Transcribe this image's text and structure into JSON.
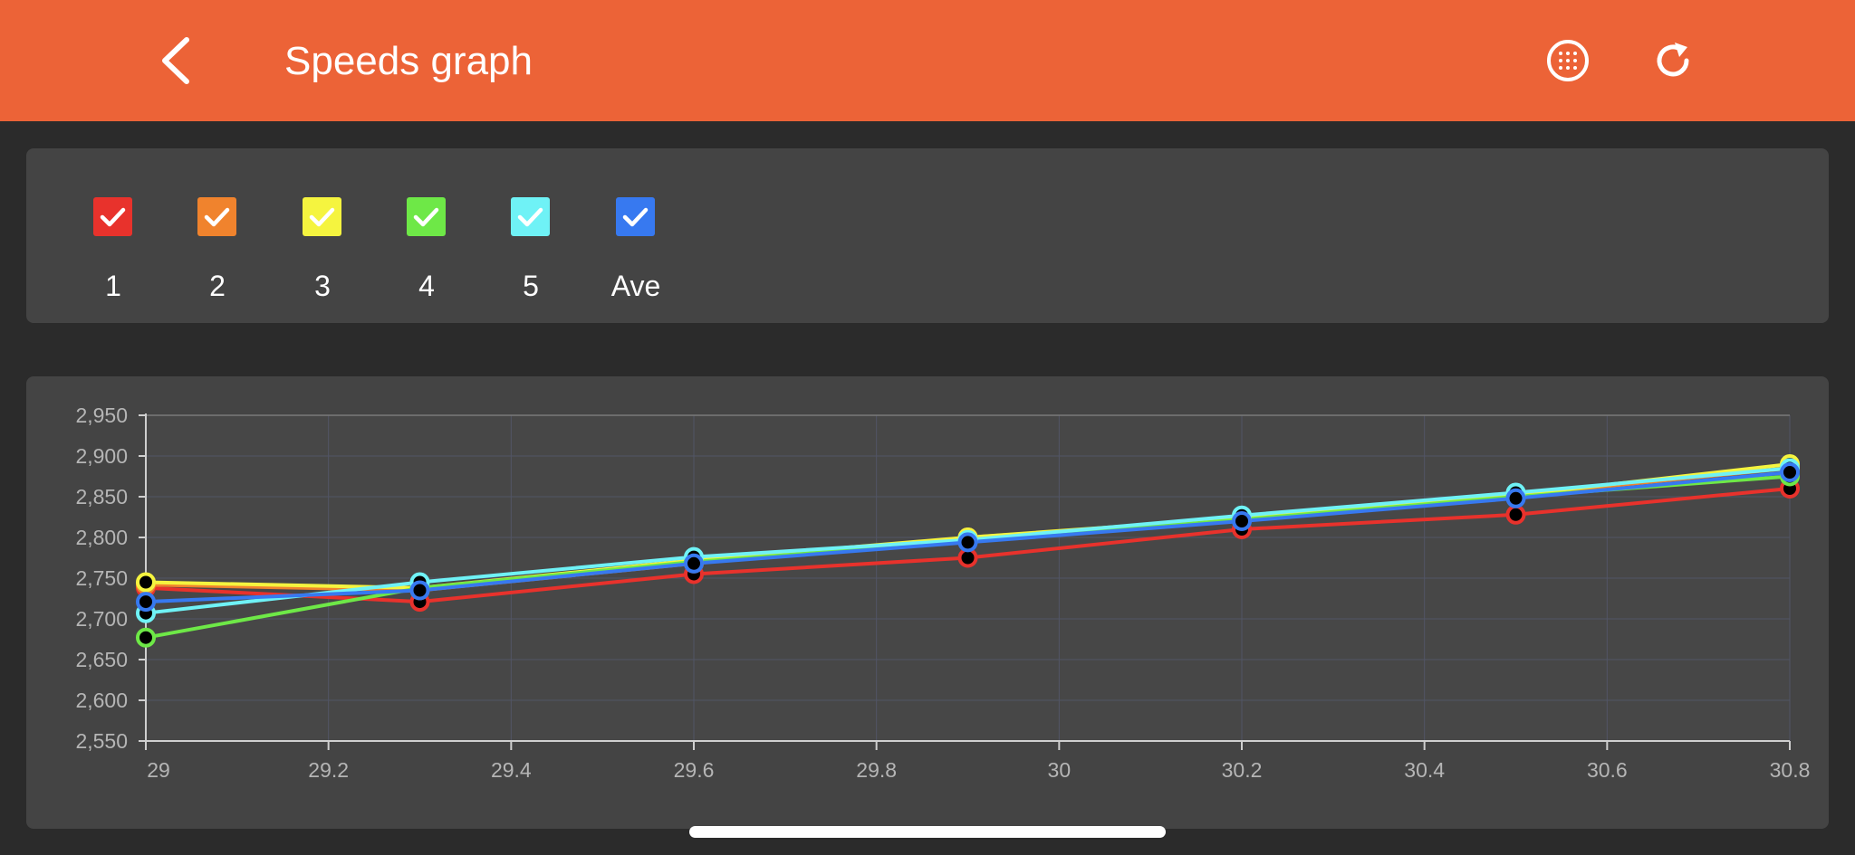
{
  "header": {
    "title": "Speeds graph",
    "back_icon": "chevron-left-icon",
    "grid_icon": "grid-dots-icon",
    "refresh_icon": "refresh-icon",
    "background": "#ec6337"
  },
  "legend": {
    "items": [
      {
        "label": "1",
        "color": "#e8322c",
        "checked": true
      },
      {
        "label": "2",
        "color": "#f0832d",
        "checked": true
      },
      {
        "label": "3",
        "color": "#f5f43f",
        "checked": true
      },
      {
        "label": "4",
        "color": "#6ee847",
        "checked": true
      },
      {
        "label": "5",
        "color": "#6ff2f6",
        "checked": true
      },
      {
        "label": "Ave",
        "color": "#3779f0",
        "checked": true
      }
    ]
  },
  "chart_data": {
    "type": "line",
    "x": [
      29,
      29.3,
      29.6,
      29.9,
      30.2,
      30.5,
      30.8
    ],
    "xlim": [
      29,
      30.8
    ],
    "xticks": [
      29,
      29.2,
      29.4,
      29.6,
      29.8,
      30,
      30.2,
      30.4,
      30.6,
      30.8
    ],
    "xtick_labels": [
      "29",
      "29.2",
      "29.4",
      "29.6",
      "29.8",
      "30",
      "30.2",
      "30.4",
      "30.6",
      "30.8"
    ],
    "ylim": [
      2550,
      2950
    ],
    "yticks": [
      2550,
      2600,
      2650,
      2700,
      2750,
      2800,
      2850,
      2900,
      2950
    ],
    "ytick_labels": [
      "2,550",
      "2,600",
      "2,650",
      "2,700",
      "2,750",
      "2,800",
      "2,850",
      "2,900",
      "2,950"
    ],
    "grid": true,
    "series": [
      {
        "name": "1",
        "color": "#e8322c",
        "values": [
          2738,
          2721,
          2755,
          2775,
          2810,
          2828,
          2860
        ]
      },
      {
        "name": "2",
        "color": "#f0832d",
        "values": [
          2742,
          2735,
          2768,
          2800,
          2822,
          2852,
          2885
        ]
      },
      {
        "name": "3",
        "color": "#f5f43f",
        "values": [
          2745,
          2738,
          2772,
          2800,
          2824,
          2852,
          2890
        ]
      },
      {
        "name": "4",
        "color": "#6ee847",
        "values": [
          2677,
          2738,
          2770,
          2795,
          2822,
          2850,
          2875
        ]
      },
      {
        "name": "5",
        "color": "#6ff2f6",
        "values": [
          2707,
          2745,
          2776,
          2797,
          2827,
          2855,
          2885
        ]
      },
      {
        "name": "Ave",
        "color": "#3779f0",
        "values": [
          2721,
          2735,
          2768,
          2794,
          2820,
          2848,
          2880
        ]
      }
    ]
  }
}
